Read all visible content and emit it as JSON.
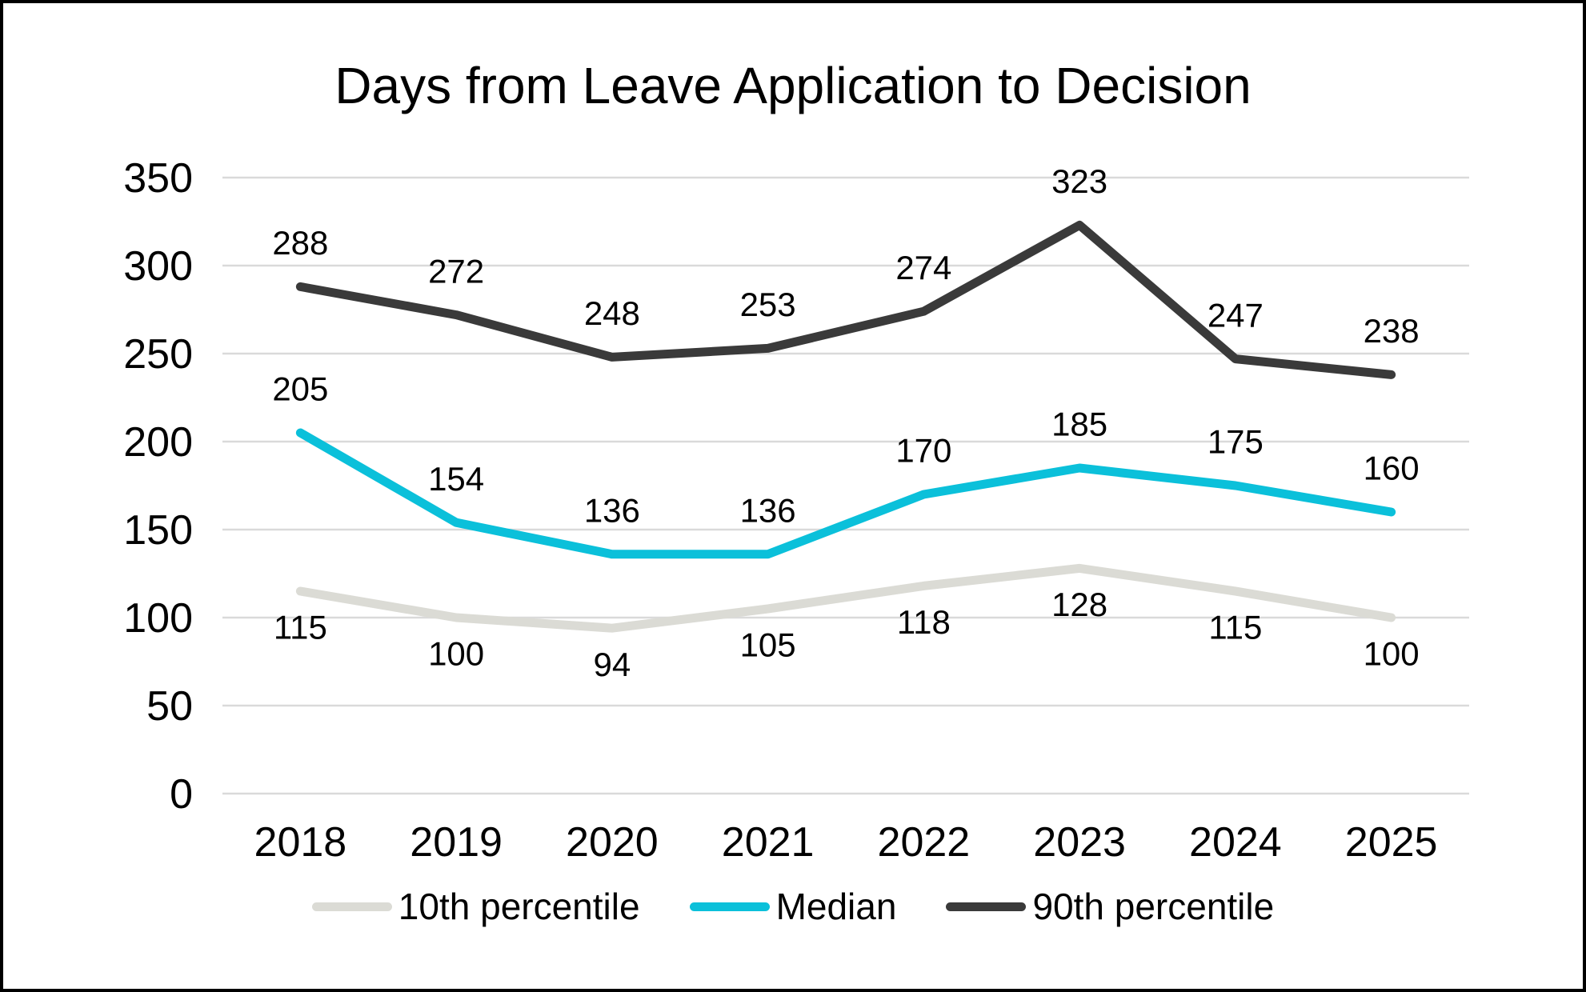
{
  "title": "Days from Leave Application to Decision",
  "chart_data": {
    "type": "line",
    "title": "Days from Leave Application to Decision",
    "categories": [
      "2018",
      "2019",
      "2020",
      "2021",
      "2022",
      "2023",
      "2024",
      "2025"
    ],
    "series": [
      {
        "name": "10th percentile",
        "values": [
          115,
          100,
          94,
          105,
          118,
          128,
          115,
          100
        ],
        "color": "#DBDBD5",
        "label_position": "below"
      },
      {
        "name": "Median",
        "values": [
          205,
          154,
          136,
          136,
          170,
          185,
          175,
          160
        ],
        "color": "#0BC0DA",
        "label_position": "above"
      },
      {
        "name": "90th percentile",
        "values": [
          288,
          272,
          248,
          253,
          274,
          323,
          247,
          238
        ],
        "color": "#3A3A3A",
        "label_position": "above"
      }
    ],
    "y_axis": {
      "min": 0,
      "max": 350,
      "step": 50,
      "tick_labels": [
        "0",
        "50",
        "100",
        "150",
        "200",
        "250",
        "300",
        "350"
      ]
    },
    "grid": true,
    "gridline_color": "#DADADA",
    "background_color": "#FFFFFF",
    "frame_border_color": "#000000",
    "text_color": "#000000",
    "data_labels": true,
    "legend_position": "bottom"
  }
}
